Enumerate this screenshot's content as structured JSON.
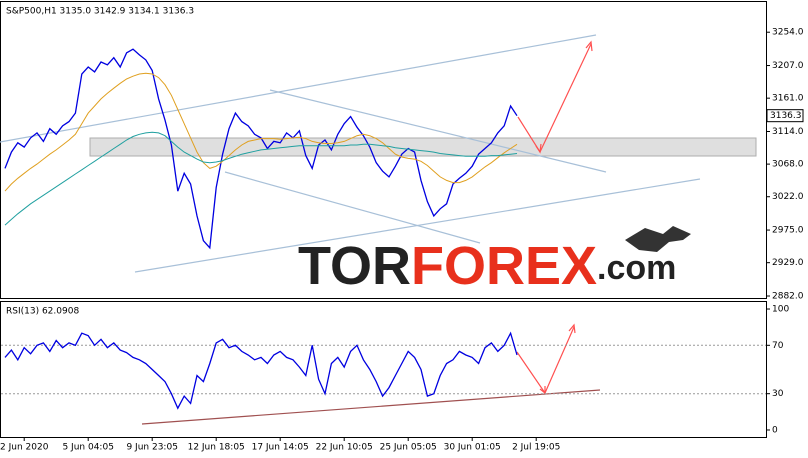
{
  "chart_data": [
    {
      "type": "line",
      "title": "S&P500,H1  3135.0 3142.9 3134.1 3136.3",
      "watermark": [
        "TOR",
        "FOREX",
        ".com"
      ],
      "last_value": 3136.3,
      "categories": [
        null,
        null,
        null,
        "2 Jun 2020",
        null,
        null,
        null,
        null,
        null,
        null,
        null,
        null,
        null,
        "5 Jun 04:05",
        null,
        null,
        null,
        null,
        null,
        null,
        null,
        null,
        null,
        "9 Jun 23:05",
        null,
        null,
        null,
        null,
        null,
        null,
        null,
        null,
        null,
        "12 Jun 18:05",
        null,
        null,
        null,
        null,
        null,
        null,
        null,
        null,
        null,
        "17 Jun 14:05",
        null,
        null,
        null,
        null,
        null,
        null,
        null,
        null,
        null,
        "22 Jun 10:05",
        null,
        null,
        null,
        null,
        null,
        null,
        null,
        null,
        null,
        "25 Jun 05:05",
        null,
        null,
        null,
        null,
        null,
        null,
        null,
        null,
        null,
        "30 Jun 01:05",
        null,
        null,
        null,
        null,
        null,
        null,
        null,
        null,
        null,
        "2 Jul 19:05"
      ],
      "series": [
        {
          "color": "#0000e0",
          "values": [
            3062,
            3085,
            3098,
            3092,
            3105,
            3112,
            3100,
            3118,
            3110,
            3122,
            3128,
            3140,
            3195,
            3205,
            3198,
            3212,
            3208,
            3218,
            3205,
            3225,
            3230,
            3222,
            3215,
            3200,
            3160,
            3130,
            3095,
            3030,
            3055,
            3040,
            2995,
            2960,
            2950,
            3035,
            3082,
            3118,
            3140,
            3128,
            3122,
            3110,
            3105,
            3090,
            3100,
            3098,
            3112,
            3105,
            3115,
            3080,
            3062,
            3095,
            3102,
            3088,
            3110,
            3125,
            3135,
            3120,
            3108,
            3092,
            3070,
            3058,
            3050,
            3065,
            3082,
            3090,
            3085,
            3045,
            3015,
            2995,
            3005,
            3012,
            3040,
            3048,
            3055,
            3065,
            3082,
            3090,
            3098,
            3112,
            3122,
            3150,
            3136.3,
            null,
            null,
            null
          ]
        },
        {
          "color": "#e0a020",
          "values": [
            3030,
            3040,
            3048,
            3055,
            3062,
            3068,
            3075,
            3082,
            3088,
            3095,
            3102,
            3110,
            3125,
            3140,
            3150,
            3160,
            3168,
            3175,
            3182,
            3188,
            3192,
            3195,
            3196,
            3195,
            3190,
            3180,
            3165,
            3145,
            3125,
            3105,
            3085,
            3070,
            3062,
            3065,
            3072,
            3080,
            3088,
            3095,
            3100,
            3102,
            3104,
            3104,
            3104,
            3103,
            3104,
            3105,
            3106,
            3104,
            3100,
            3098,
            3097,
            3097,
            3098,
            3100,
            3104,
            3108,
            3110,
            3108,
            3104,
            3098,
            3090,
            3082,
            3078,
            3076,
            3075,
            3072,
            3066,
            3058,
            3050,
            3045,
            3042,
            3042,
            3045,
            3050,
            3057,
            3064,
            3070,
            3077,
            3084,
            3090,
            3096,
            null,
            null,
            null
          ]
        },
        {
          "color": "#20a0a0",
          "values": [
            2982,
            2990,
            2998,
            3005,
            3012,
            3018,
            3024,
            3030,
            3036,
            3042,
            3048,
            3054,
            3060,
            3066,
            3072,
            3078,
            3084,
            3090,
            3096,
            3102,
            3107,
            3110,
            3112,
            3113,
            3112,
            3108,
            3100,
            3092,
            3085,
            3080,
            3075,
            3071,
            3070,
            3071,
            3073,
            3076,
            3079,
            3082,
            3084,
            3086,
            3088,
            3089,
            3090,
            3091,
            3092,
            3093,
            3094,
            3094,
            3094,
            3094,
            3094,
            3094,
            3094,
            3094,
            3095,
            3095,
            3096,
            3096,
            3095,
            3094,
            3093,
            3091,
            3090,
            3089,
            3088,
            3087,
            3086,
            3085,
            3083,
            3082,
            3081,
            3080,
            3079,
            3079,
            3079,
            3079,
            3080,
            3080,
            3081,
            3082,
            3083,
            null,
            null,
            null
          ]
        }
      ],
      "ylim": [
        2879.2,
        3296.6
      ],
      "yticks": [
        {
          "value": 2882,
          "label": "2882.0"
        },
        {
          "value": 2929,
          "label": "2929.0"
        },
        {
          "value": 2975,
          "label": "2975.0"
        },
        {
          "value": 3022,
          "label": "3022.0"
        },
        {
          "value": 3068,
          "label": "3068.0"
        },
        {
          "value": 3114,
          "label": "3114.0"
        },
        {
          "value": 3161,
          "label": "3161.0"
        },
        {
          "value": 3207,
          "label": "3207.0"
        },
        {
          "value": 3254,
          "label": "3254.0"
        }
      ]
    },
    {
      "type": "line",
      "title": "RSI(13) 62.0908",
      "series": [
        {
          "color": "#0000e0",
          "values": [
            60,
            66,
            58,
            68,
            63,
            70,
            72,
            65,
            74,
            68,
            72,
            70,
            80,
            78,
            70,
            75,
            68,
            72,
            66,
            64,
            60,
            58,
            55,
            50,
            45,
            40,
            30,
            18,
            28,
            22,
            45,
            40,
            55,
            72,
            75,
            68,
            70,
            65,
            62,
            58,
            60,
            55,
            62,
            65,
            60,
            58,
            52,
            45,
            70,
            42,
            30,
            55,
            60,
            52,
            65,
            70,
            58,
            50,
            40,
            28,
            35,
            45,
            55,
            65,
            60,
            50,
            28,
            30,
            45,
            55,
            58,
            65,
            62,
            60,
            55,
            68,
            72,
            65,
            70,
            80,
            62,
            null,
            null,
            null
          ]
        }
      ],
      "ylim": [
        -5.8,
        105.8
      ],
      "yticks": [
        0,
        30,
        70,
        100
      ]
    }
  ]
}
